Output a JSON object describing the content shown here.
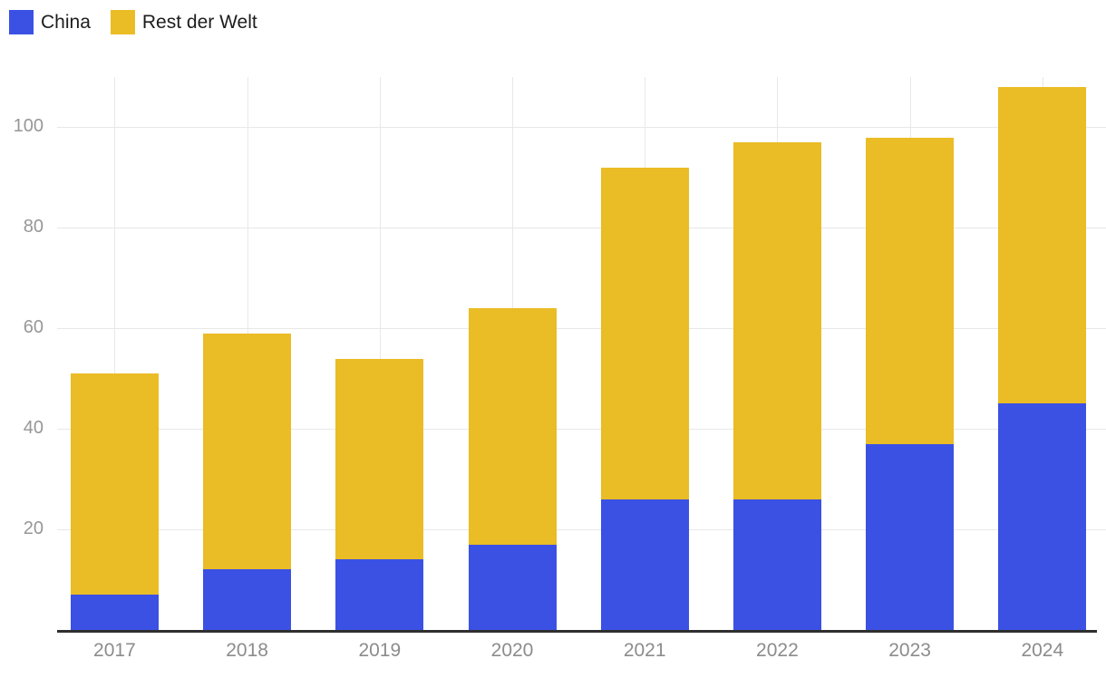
{
  "legend": {
    "items": [
      {
        "label": "China",
        "color": "#3b51e4"
      },
      {
        "label": "Rest der Welt",
        "color": "#eabc25"
      }
    ]
  },
  "chart_data": {
    "type": "bar",
    "stacked": true,
    "title": "",
    "xlabel": "",
    "ylabel": "",
    "categories": [
      "2017",
      "2018",
      "2019",
      "2020",
      "2021",
      "2022",
      "2023",
      "2024"
    ],
    "series": [
      {
        "name": "China",
        "color": "#3b51e4",
        "values": [
          7,
          12,
          14,
          17,
          26,
          26,
          37,
          45
        ]
      },
      {
        "name": "Rest der Welt",
        "color": "#eabc25",
        "values": [
          44,
          47,
          40,
          47,
          66,
          71,
          61,
          63
        ]
      }
    ],
    "totals": [
      51,
      59,
      54,
      64,
      92,
      97,
      98,
      108
    ],
    "y_ticks": [
      20,
      40,
      60,
      80,
      100
    ],
    "ylim": [
      0,
      110
    ],
    "grid": true,
    "legend_position": "top-left",
    "colors": {
      "grid": "#e8e8e8",
      "axis_line": "#2f2f2f",
      "y_tick_text": "#979797",
      "x_tick_text": "#8c8c8c",
      "legend_text": "#1d1d1d"
    }
  }
}
